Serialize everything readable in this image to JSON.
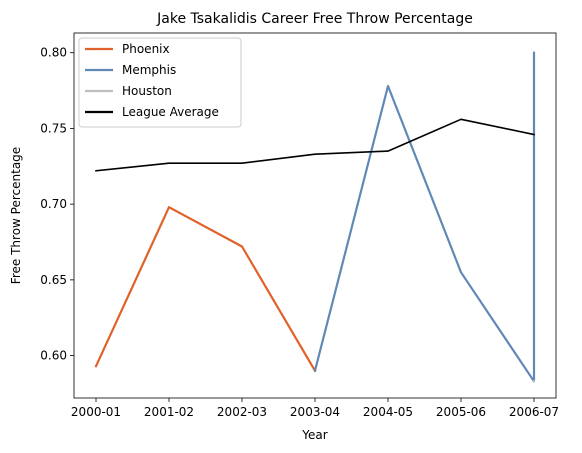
{
  "chart_data": {
    "type": "line",
    "title": "Jake Tsakalidis Career Free Throw Percentage",
    "xlabel": "Year",
    "ylabel": "Free Throw Percentage",
    "categories": [
      "2000-01",
      "2001-02",
      "2002-03",
      "2003-04",
      "2004-05",
      "2005-06",
      "2006-07"
    ],
    "ylim": [
      0.572,
      0.813
    ],
    "yticks": [
      0.6,
      0.65,
      0.7,
      0.75,
      0.8
    ],
    "ytick_labels": [
      "0.60",
      "0.65",
      "0.70",
      "0.75",
      "0.80"
    ],
    "grid": false,
    "legend_position": "top-left",
    "series": [
      {
        "name": "Phoenix",
        "color": "#e0622a",
        "points": [
          [
            0,
            0.593
          ],
          [
            1,
            0.698
          ],
          [
            2,
            0.672
          ],
          [
            3,
            0.59
          ]
        ]
      },
      {
        "name": "Memphis",
        "color": "#6089b6",
        "points": [
          [
            3,
            0.59
          ],
          [
            4,
            0.778
          ],
          [
            5,
            0.655
          ],
          [
            6,
            0.583
          ],
          [
            6,
            0.8
          ]
        ]
      },
      {
        "name": "Houston",
        "color": "#bfbfbf",
        "points": [
          [
            6,
            0.583
          ],
          [
            6,
            0.583
          ]
        ]
      },
      {
        "name": "League Average",
        "color": "#000000",
        "points": [
          [
            0,
            0.722
          ],
          [
            1,
            0.727
          ],
          [
            2,
            0.727
          ],
          [
            3,
            0.733
          ],
          [
            4,
            0.735
          ],
          [
            5,
            0.756
          ],
          [
            6,
            0.746
          ]
        ]
      }
    ]
  }
}
